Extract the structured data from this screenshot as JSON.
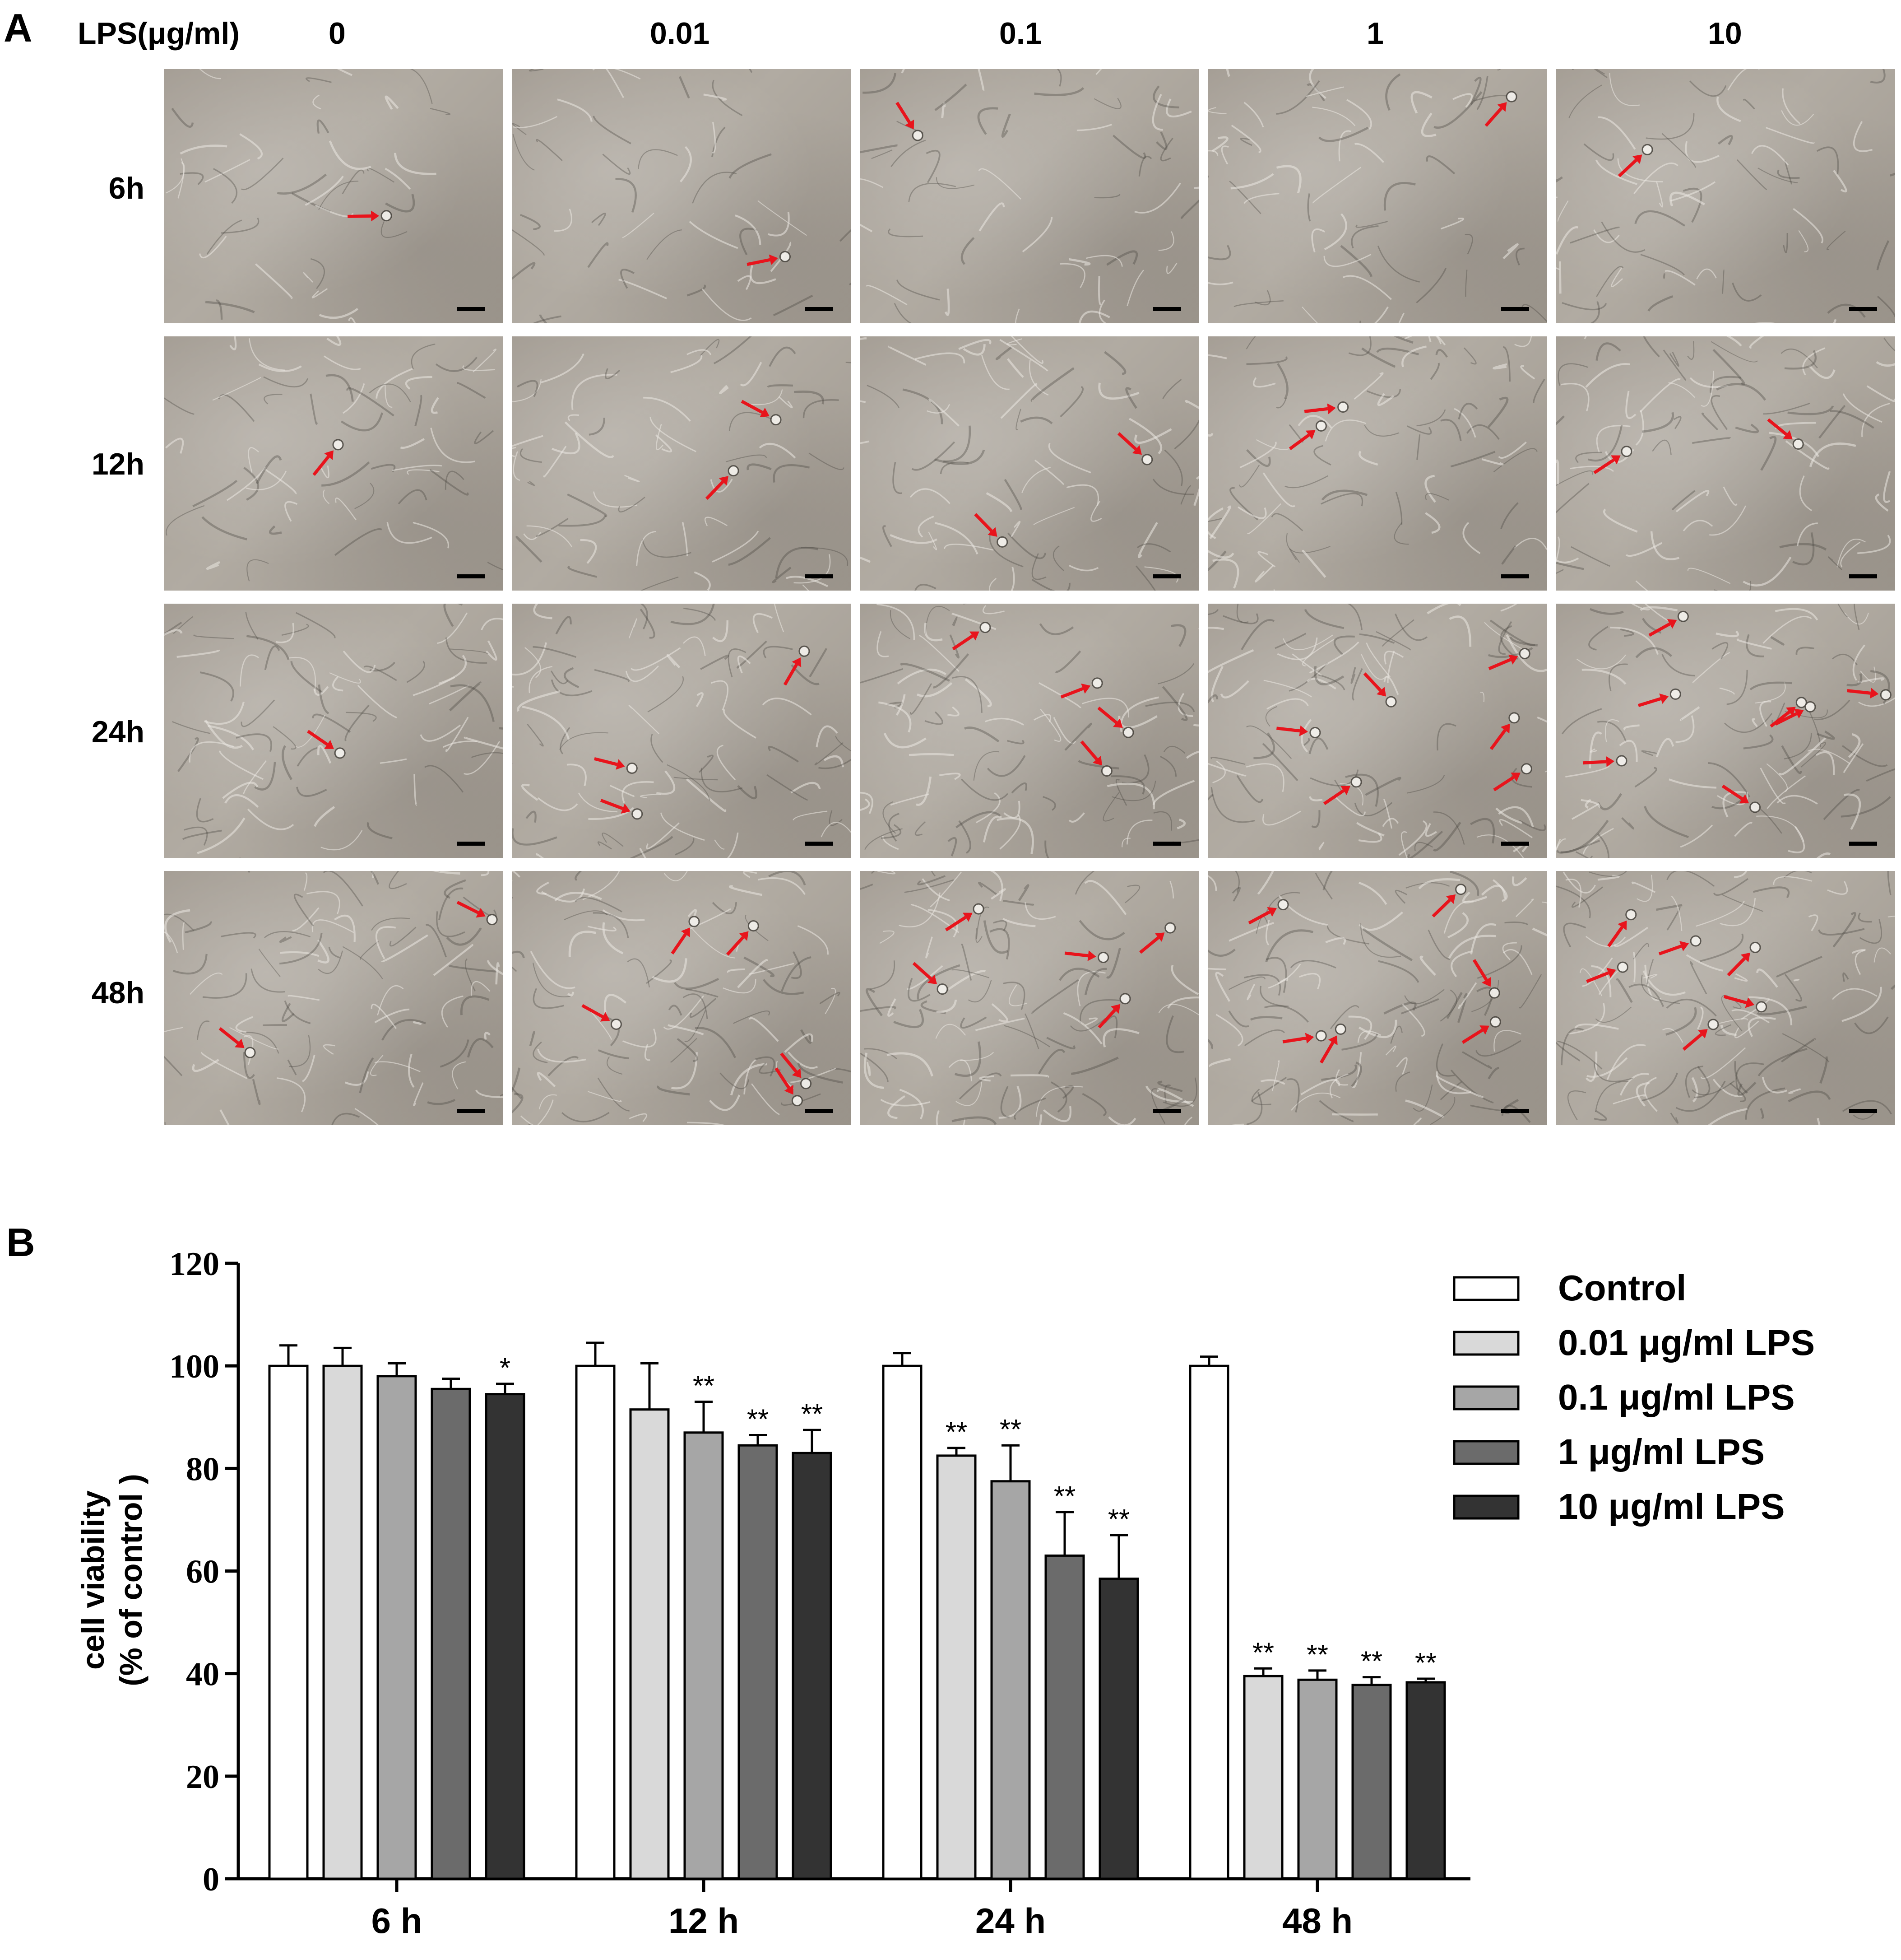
{
  "panels": {
    "a_label": "A",
    "b_label": "B"
  },
  "grid": {
    "dose_header": "LPS(μg/ml)",
    "doses": [
      "0",
      "0.01",
      "0.1",
      "1",
      "10"
    ],
    "times": [
      "6h",
      "12h",
      "24h",
      "48h"
    ],
    "arrow_color": "#e8141c",
    "scale_bar_color": "#000000",
    "arrows_per_cell": [
      [
        1,
        1,
        1,
        1,
        1
      ],
      [
        1,
        2,
        2,
        2,
        2
      ],
      [
        1,
        3,
        4,
        6,
        7
      ],
      [
        2,
        5,
        5,
        6,
        6
      ]
    ]
  },
  "chart_data": {
    "type": "bar",
    "ylabel": [
      "cell viability",
      "(% of control )"
    ],
    "ylim": [
      0,
      120
    ],
    "yticks": [
      "0",
      "20",
      "40",
      "60",
      "80",
      "100",
      "120"
    ],
    "categories": [
      "6 h",
      "12 h",
      "24 h",
      "48 h"
    ],
    "series": [
      {
        "name": "Control",
        "color": "#ffffff",
        "values": [
          100,
          100,
          100,
          100
        ],
        "errors": [
          4,
          4.5,
          2.5,
          1.8
        ],
        "sig": [
          "",
          "",
          "",
          ""
        ]
      },
      {
        "name": "0.01 μg/ml LPS",
        "color": "#d9d9d9",
        "values": [
          100,
          91.5,
          82.5,
          39.5
        ],
        "errors": [
          3.5,
          9,
          1.5,
          1.5
        ],
        "sig": [
          "",
          "",
          "**",
          "**"
        ]
      },
      {
        "name": "0.1 μg/ml LPS",
        "color": "#a6a6a6",
        "values": [
          98,
          87,
          77.5,
          38.8
        ],
        "errors": [
          2.5,
          6,
          7,
          1.8
        ],
        "sig": [
          "",
          "**",
          "**",
          "**"
        ]
      },
      {
        "name": "1 μg/ml LPS",
        "color": "#6b6b6b",
        "values": [
          95.5,
          84.5,
          63,
          37.8
        ],
        "errors": [
          2,
          2,
          8.5,
          1.5
        ],
        "sig": [
          "",
          "**",
          "**",
          "**"
        ]
      },
      {
        "name": "10 μg/ml LPS",
        "color": "#333333",
        "values": [
          94.5,
          83,
          58.5,
          38.3
        ],
        "errors": [
          2,
          4.5,
          8.5,
          0.7
        ],
        "sig": [
          "*",
          "**",
          "**",
          "**"
        ]
      }
    ],
    "legend_position": "top-right",
    "grid": false
  }
}
